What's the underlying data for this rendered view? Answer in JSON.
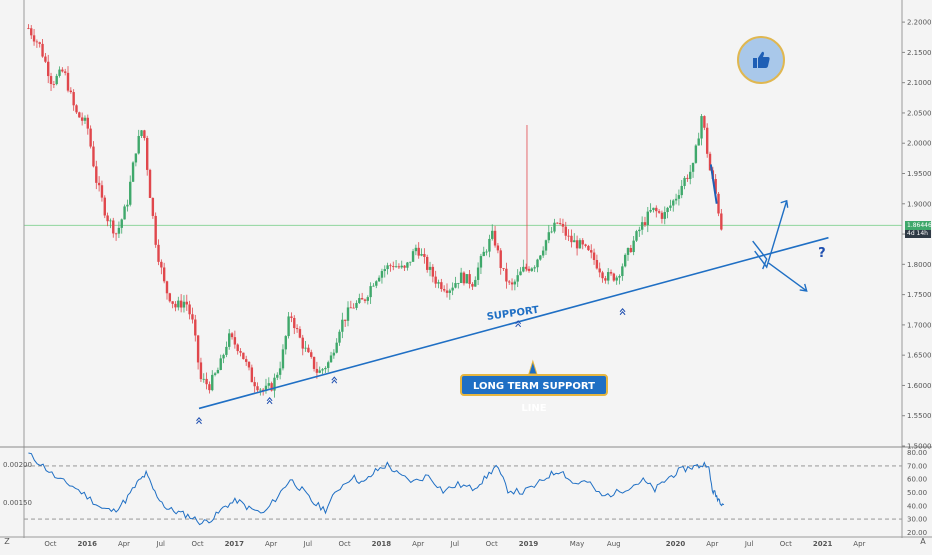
{
  "chart_data": [
    {
      "type": "candlestick",
      "panel": "price",
      "y_ticks": [
        "2.20000",
        "2.15000",
        "2.10000",
        "2.05000",
        "2.00000",
        "1.95000",
        "1.90000",
        "1.85000",
        "1.80000",
        "1.75000",
        "1.70000",
        "1.65000",
        "1.60000",
        "1.55000",
        "1.50000"
      ],
      "ylim": [
        1.5,
        2.22
      ],
      "x_ticks": [
        "Oct",
        "2016",
        "Apr",
        "Jul",
        "Oct",
        "2017",
        "Apr",
        "Jul",
        "Oct",
        "2018",
        "Apr",
        "Jul",
        "Oct",
        "2019",
        "May",
        "Aug",
        "2020",
        "Apr",
        "Jul",
        "Oct",
        "2021",
        "Apr"
      ],
      "x_tick_dates": [
        2015.75,
        2016.0,
        2016.25,
        2016.5,
        2016.75,
        2017.0,
        2017.25,
        2017.5,
        2017.75,
        2018.0,
        2018.25,
        2018.5,
        2018.75,
        2019.0,
        2019.33,
        2019.58,
        2020.0,
        2020.25,
        2020.5,
        2020.75,
        2021.0,
        2021.25
      ],
      "xlim": [
        2015.57,
        2021.54
      ],
      "last_price": "1.86446",
      "countdown": "4d 14h",
      "close_path": [
        [
          2015.6,
          2.19
        ],
        [
          2015.68,
          2.16
        ],
        [
          2015.76,
          2.1
        ],
        [
          2015.84,
          2.12
        ],
        [
          2015.92,
          2.05
        ],
        [
          2016.0,
          2.03
        ],
        [
          2016.06,
          1.94
        ],
        [
          2016.13,
          1.88
        ],
        [
          2016.2,
          1.85
        ],
        [
          2016.27,
          1.9
        ],
        [
          2016.33,
          1.99
        ],
        [
          2016.38,
          2.03
        ],
        [
          2016.42,
          1.93
        ],
        [
          2016.47,
          1.83
        ],
        [
          2016.53,
          1.76
        ],
        [
          2016.6,
          1.73
        ],
        [
          2016.67,
          1.74
        ],
        [
          2016.72,
          1.7
        ],
        [
          2016.77,
          1.61
        ],
        [
          2016.83,
          1.6
        ],
        [
          2016.9,
          1.63
        ],
        [
          2016.96,
          1.68
        ],
        [
          2017.04,
          1.66
        ],
        [
          2017.12,
          1.61
        ],
        [
          2017.2,
          1.59
        ],
        [
          2017.26,
          1.6
        ],
        [
          2017.32,
          1.64
        ],
        [
          2017.38,
          1.72
        ],
        [
          2017.44,
          1.68
        ],
        [
          2017.5,
          1.65
        ],
        [
          2017.57,
          1.62
        ],
        [
          2017.65,
          1.64
        ],
        [
          2017.72,
          1.7
        ],
        [
          2017.8,
          1.73
        ],
        [
          2017.88,
          1.74
        ],
        [
          2017.94,
          1.77
        ],
        [
          2018.0,
          1.79
        ],
        [
          2018.08,
          1.8
        ],
        [
          2018.16,
          1.79
        ],
        [
          2018.24,
          1.83
        ],
        [
          2018.3,
          1.8
        ],
        [
          2018.38,
          1.77
        ],
        [
          2018.46,
          1.76
        ],
        [
          2018.54,
          1.78
        ],
        [
          2018.62,
          1.77
        ],
        [
          2018.7,
          1.82
        ],
        [
          2018.76,
          1.85
        ],
        [
          2018.82,
          1.79
        ],
        [
          2018.88,
          1.76
        ],
        [
          2018.96,
          1.79
        ],
        [
          2019.04,
          1.8
        ],
        [
          2019.12,
          1.84
        ],
        [
          2019.2,
          1.87
        ],
        [
          2019.28,
          1.84
        ],
        [
          2019.36,
          1.83
        ],
        [
          2019.44,
          1.81
        ],
        [
          2019.52,
          1.78
        ],
        [
          2019.6,
          1.78
        ],
        [
          2019.68,
          1.82
        ],
        [
          2019.76,
          1.86
        ],
        [
          2019.84,
          1.89
        ],
        [
          2019.92,
          1.88
        ],
        [
          2020.0,
          1.91
        ],
        [
          2020.06,
          1.94
        ],
        [
          2020.12,
          1.96
        ],
        [
          2020.18,
          2.05
        ],
        [
          2020.23,
          1.96
        ],
        [
          2020.27,
          1.92
        ],
        [
          2020.32,
          1.85
        ]
      ],
      "support_line": [
        [
          2016.76,
          1.562
        ],
        [
          2021.04,
          1.844
        ]
      ],
      "annotations": {
        "support_label": "SUPPORT",
        "callout": "LONG TERM SUPPORT LINE",
        "question": "?"
      }
    },
    {
      "type": "line",
      "panel": "oscillator",
      "y_ticks_right": [
        "80.00",
        "70.00",
        "60.00",
        "50.00",
        "40.00",
        "30.00",
        "20.00"
      ],
      "y_ticks_left": [
        "0.00200",
        "0.00150"
      ],
      "ylim": [
        18,
        82
      ],
      "levels": [
        70,
        30
      ],
      "values": [
        [
          2015.6,
          79
        ],
        [
          2015.7,
          70
        ],
        [
          2015.8,
          60
        ],
        [
          2015.9,
          55
        ],
        [
          2016.0,
          47
        ],
        [
          2016.1,
          38
        ],
        [
          2016.18,
          36
        ],
        [
          2016.26,
          44
        ],
        [
          2016.34,
          57
        ],
        [
          2016.4,
          64
        ],
        [
          2016.46,
          50
        ],
        [
          2016.54,
          38
        ],
        [
          2016.62,
          35
        ],
        [
          2016.7,
          32
        ],
        [
          2016.78,
          27
        ],
        [
          2016.86,
          31
        ],
        [
          2016.94,
          40
        ],
        [
          2017.02,
          44
        ],
        [
          2017.1,
          38
        ],
        [
          2017.2,
          34
        ],
        [
          2017.3,
          48
        ],
        [
          2017.38,
          60
        ],
        [
          2017.46,
          52
        ],
        [
          2017.54,
          42
        ],
        [
          2017.62,
          37
        ],
        [
          2017.7,
          52
        ],
        [
          2017.8,
          62
        ],
        [
          2017.88,
          57
        ],
        [
          2017.96,
          66
        ],
        [
          2018.04,
          71
        ],
        [
          2018.12,
          63
        ],
        [
          2018.22,
          58
        ],
        [
          2018.32,
          63
        ],
        [
          2018.42,
          51
        ],
        [
          2018.52,
          56
        ],
        [
          2018.62,
          53
        ],
        [
          2018.7,
          60
        ],
        [
          2018.78,
          70
        ],
        [
          2018.86,
          52
        ],
        [
          2018.96,
          50
        ],
        [
          2019.06,
          56
        ],
        [
          2019.14,
          63
        ],
        [
          2019.22,
          67
        ],
        [
          2019.3,
          57
        ],
        [
          2019.4,
          58
        ],
        [
          2019.5,
          47
        ],
        [
          2019.6,
          50
        ],
        [
          2019.7,
          55
        ],
        [
          2019.78,
          59
        ],
        [
          2019.86,
          52
        ],
        [
          2019.94,
          60
        ],
        [
          2020.02,
          66
        ],
        [
          2020.1,
          69
        ],
        [
          2020.16,
          70
        ],
        [
          2020.22,
          72
        ],
        [
          2020.25,
          52
        ],
        [
          2020.28,
          47
        ],
        [
          2020.31,
          43
        ],
        [
          2020.33,
          41
        ]
      ]
    }
  ]
}
